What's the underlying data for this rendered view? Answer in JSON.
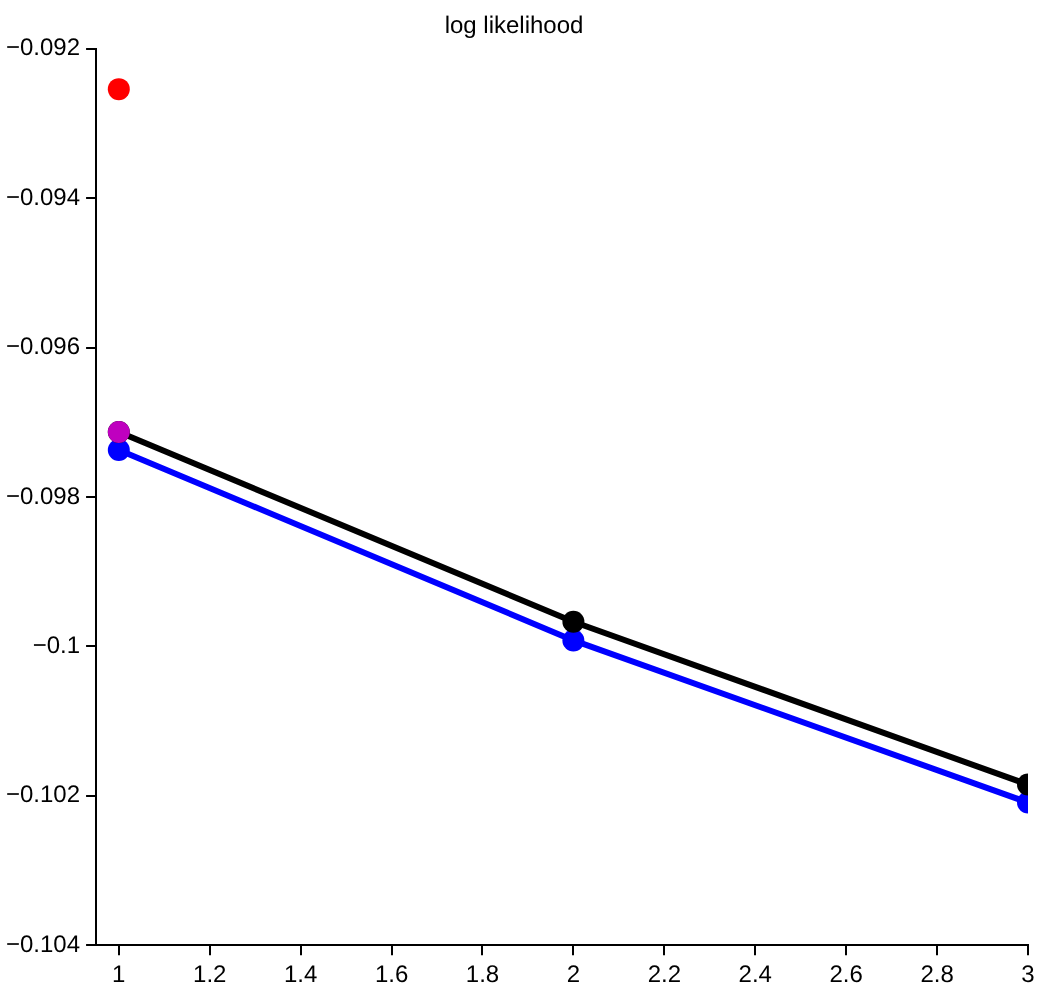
{
  "chart_data": {
    "type": "line",
    "title": "log likelihood",
    "xlim": [
      0.95,
      3
    ],
    "xticks": [
      1,
      1.2,
      1.4,
      1.6,
      1.8,
      2,
      2.2,
      2.4,
      2.6,
      2.8,
      3
    ],
    "ylim": [
      -0.104,
      -0.092
    ],
    "yticks": [
      -0.104,
      -0.102,
      -0.1,
      -0.098,
      -0.096,
      -0.094,
      -0.092
    ],
    "grid": false,
    "legend": false,
    "marker": "circle",
    "line_style": "solid",
    "series": [
      {
        "color": "#000000",
        "x": [
          1,
          2,
          3
        ],
        "values": [
          -0.09713,
          -0.09967,
          -0.10185
        ]
      },
      {
        "color": "#0000ff",
        "x": [
          1,
          2,
          3
        ],
        "values": [
          -0.09737,
          -0.09992,
          -0.10209
        ]
      },
      {
        "type": "scatter",
        "color": "#ff0000",
        "x": [
          1
        ],
        "values": [
          -0.09254
        ]
      },
      {
        "type": "scatter",
        "color": "#bf00bf",
        "x": [
          1
        ],
        "values": [
          -0.09713
        ]
      }
    ]
  }
}
